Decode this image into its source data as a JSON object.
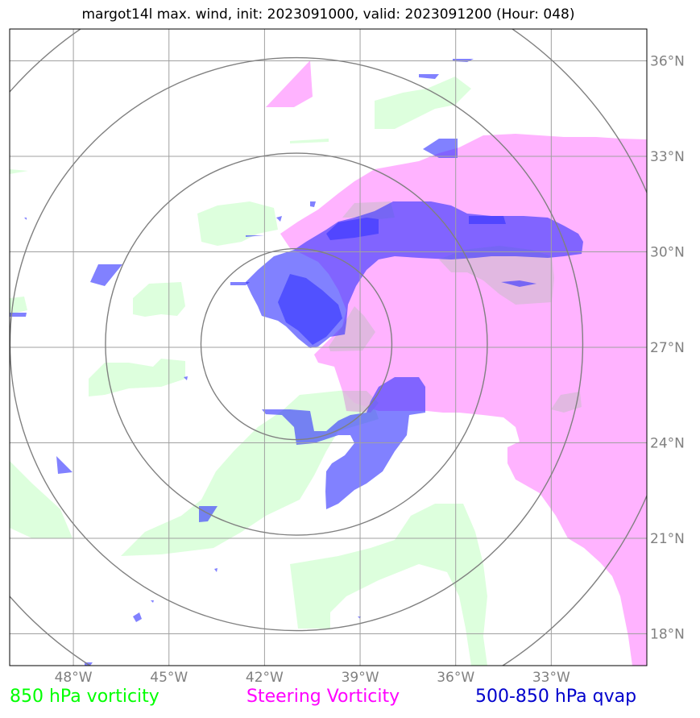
{
  "title": "margot14l max. wind, init: 2023091000, valid: 2023091200 (Hour: 048)",
  "map": {
    "lon_range": [
      -50,
      -30
    ],
    "lat_range": [
      17,
      37
    ],
    "lon_ticks": [
      {
        "value": -48,
        "label": "48°W"
      },
      {
        "value": -45,
        "label": "45°W"
      },
      {
        "value": -42,
        "label": "42°W"
      },
      {
        "value": -39,
        "label": "39°W"
      },
      {
        "value": -36,
        "label": "36°W"
      },
      {
        "value": -33,
        "label": "33°W"
      }
    ],
    "lat_ticks": [
      {
        "value": 18,
        "label": "18°N"
      },
      {
        "value": 21,
        "label": "21°N"
      },
      {
        "value": 24,
        "label": "24°N"
      },
      {
        "value": 27,
        "label": "27°N"
      },
      {
        "value": 30,
        "label": "30°N"
      },
      {
        "value": 33,
        "label": "33°N"
      },
      {
        "value": 36,
        "label": "36°N"
      }
    ],
    "storm_center": {
      "lon": -41.0,
      "lat": 27.1
    },
    "range_rings_deg": [
      3,
      6,
      9,
      12
    ],
    "grid": true
  },
  "legend": [
    {
      "label": "850 hPa vorticity",
      "color": "#00ff00"
    },
    {
      "label": "Steering Vorticity",
      "color": "#ff00ff"
    },
    {
      "label": "500-850 hPa qvap",
      "color": "#0000cc"
    }
  ],
  "layers": {
    "steering": {
      "color": "#ffb3ff"
    },
    "vort850": {
      "color": "#ddffdd"
    },
    "qvap": {
      "color": "#3333ff",
      "opacity": 0.62
    }
  }
}
